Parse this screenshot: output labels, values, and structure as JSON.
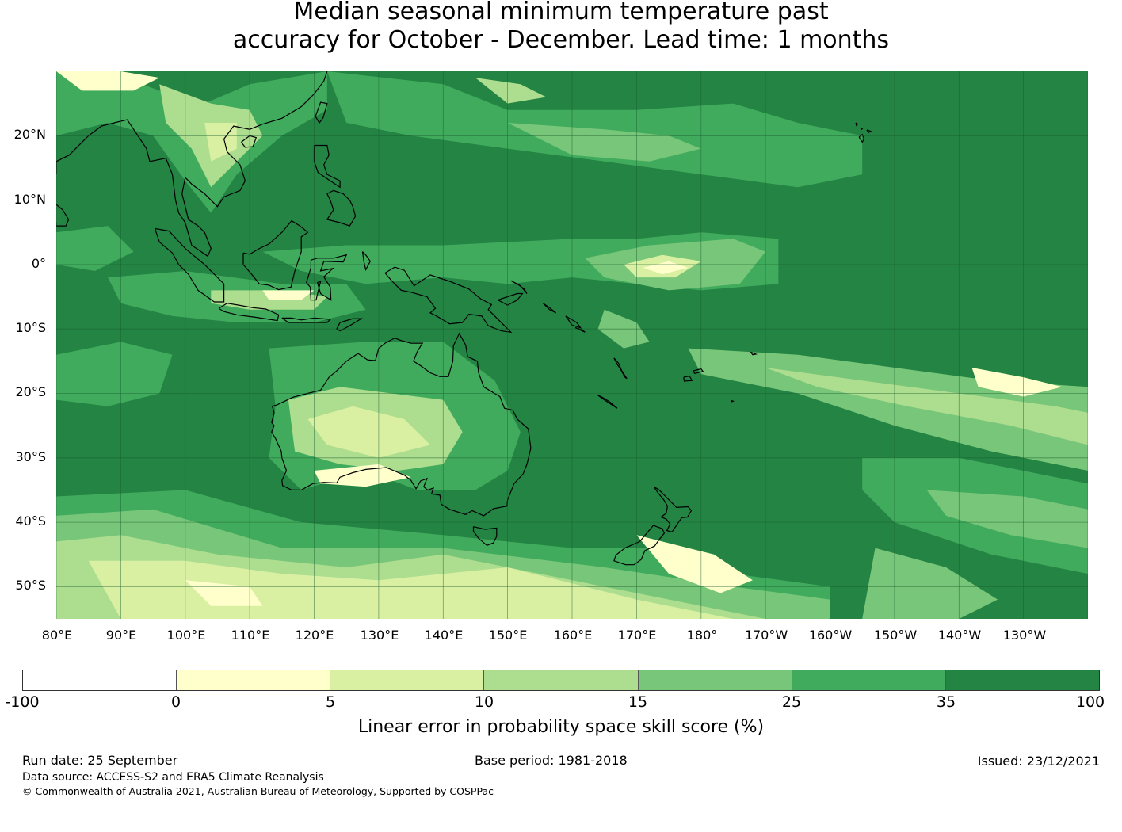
{
  "title": {
    "line1": "Median seasonal minimum temperature past",
    "line2": "accuracy for October - December. Lead time: 1 months"
  },
  "map": {
    "lat_labels": [
      "20°N",
      "10°N",
      "0°",
      "10°S",
      "20°S",
      "30°S",
      "40°S",
      "50°S"
    ],
    "lon_labels": [
      "80°E",
      "90°E",
      "100°E",
      "110°E",
      "120°E",
      "130°E",
      "140°E",
      "150°E",
      "160°E",
      "170°E",
      "180°",
      "170°W",
      "160°W",
      "150°W",
      "140°W",
      "130°W"
    ],
    "extent_lon": [
      80,
      240
    ],
    "extent_lat": [
      -55,
      30
    ],
    "base_color": "#238443"
  },
  "colorbar": {
    "colors": [
      "#ffffff",
      "#ffffcc",
      "#d9f0a3",
      "#addd8e",
      "#78c679",
      "#41ab5d",
      "#238443"
    ],
    "ticks": [
      "-100",
      "0",
      "5",
      "10",
      "15",
      "25",
      "35",
      "100"
    ],
    "label": "Linear error in probability space skill score (%)"
  },
  "footer": {
    "run_date": "Run date: 25 September",
    "base_period": "Base period: 1981-2018",
    "issued": "Issued: 23/12/2021",
    "data_source": "Data source: ACCESS-S2 and ERA5 Climate Reanalysis",
    "copyright": "© Commonwealth of Australia 2021, Australian Bureau of Meteorology, Supported by COSPPac"
  }
}
